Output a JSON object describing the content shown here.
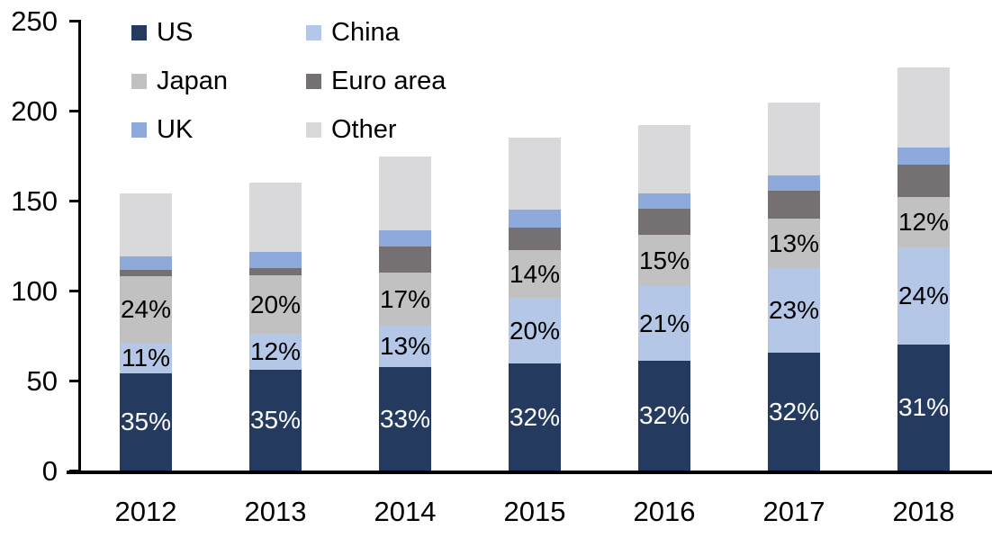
{
  "chart_data": {
    "type": "bar",
    "stacked": true,
    "categories": [
      "2012",
      "2013",
      "2014",
      "2015",
      "2016",
      "2017",
      "2018"
    ],
    "series": [
      {
        "name": "US",
        "color": "#243A5E",
        "values": [
          54,
          56,
          57.5,
          59.5,
          61,
          65.5,
          70
        ],
        "labels": [
          "35%",
          "35%",
          "33%",
          "32%",
          "32%",
          "32%",
          "31%"
        ],
        "label_color": "#FFFFFF"
      },
      {
        "name": "China",
        "color": "#B4C7E7",
        "values": [
          17,
          20,
          23,
          36.5,
          41.5,
          47,
          54
        ],
        "labels": [
          "11%",
          "12%",
          "13%",
          "20%",
          "21%",
          "23%",
          "24%"
        ],
        "label_color": "#000000"
      },
      {
        "name": "Japan",
        "color": "#C1C1C1",
        "values": [
          37,
          32.5,
          29.5,
          26.5,
          28.5,
          27.5,
          28
        ],
        "labels": [
          "24%",
          "20%",
          "17%",
          "14%",
          "15%",
          "13%",
          "12%"
        ],
        "label_color": "#000000"
      },
      {
        "name": "Euro area",
        "color": "#757173",
        "values": [
          3.5,
          4,
          14.5,
          12.5,
          14.5,
          15.5,
          18
        ],
        "labels": null,
        "label_color": null
      },
      {
        "name": "UK",
        "color": "#8EA9DB",
        "values": [
          7.5,
          9,
          9,
          10,
          8.5,
          8.5,
          9.5
        ],
        "labels": null,
        "label_color": null
      },
      {
        "name": "Other",
        "color": "#D9D9DB",
        "values": [
          35,
          38.5,
          41,
          40,
          38,
          40.5,
          44.5
        ],
        "labels": null,
        "label_color": null
      }
    ],
    "ylim": [
      0,
      250
    ],
    "yticks": [
      "0",
      "50",
      "100",
      "150",
      "200",
      "250"
    ],
    "grid": false,
    "legend_position": "top-left",
    "legend_columns": 2,
    "axis_color": "#000000"
  }
}
